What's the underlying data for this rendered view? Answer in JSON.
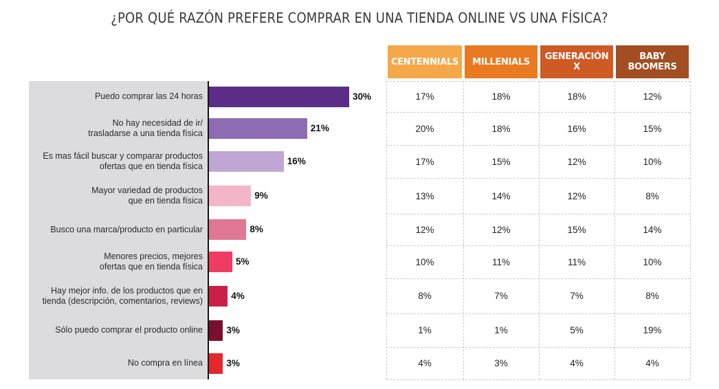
{
  "title": "¿POR QUÉ RAZÓN PREFERE COMPRAR EN UNA TIENDA ONLINE VS UNA FÍSICA?",
  "chart_data": {
    "type": "bar",
    "orientation": "horizontal",
    "categories": [
      "Puedo comprar las 24 horas",
      "No hay necesidad de ir/\ntrasladarse a una tienda física",
      "Es mas fácil buscar y comparar productos\nofertas que en tienda física",
      "Mayor variedad de productos\nque en tienda física",
      "Busco una marca/producto en particular",
      "Menores precios, mejores\nofertas que en tienda física",
      "Hay mejor info. de los productos que en\ntienda (descripción, comentarios, reviews)",
      "Sólo puedo comprar el producto online",
      "No compra en línea"
    ],
    "values": [
      30,
      21,
      16,
      9,
      8,
      5,
      4,
      3,
      3
    ],
    "value_labels": [
      "30%",
      "21%",
      "16%",
      "9%",
      "8%",
      "5%",
      "4%",
      "3%",
      "3%"
    ],
    "bar_colors": [
      "#5b2d87",
      "#8e6bb2",
      "#c0a6d2",
      "#f3b6c8",
      "#e07794",
      "#ee3c63",
      "#cb1f47",
      "#7a1030",
      "#e4262f"
    ],
    "table": {
      "columns": [
        {
          "label": "CENTENNIALS",
          "color": "#f4a84a"
        },
        {
          "label": "MILLENIALS",
          "color": "#ea7a22"
        },
        {
          "label": "GENERACIÓN X",
          "color": "#cf5a24"
        },
        {
          "label": "BABY\nBOOMERS",
          "color": "#a24d22"
        }
      ],
      "rows": [
        [
          "17%",
          "18%",
          "18%",
          "12%"
        ],
        [
          "20%",
          "18%",
          "16%",
          "15%"
        ],
        [
          "17%",
          "15%",
          "12%",
          "10%"
        ],
        [
          "13%",
          "14%",
          "12%",
          "8%"
        ],
        [
          "12%",
          "12%",
          "15%",
          "14%"
        ],
        [
          "10%",
          "11%",
          "11%",
          "10%"
        ],
        [
          "8%",
          "7%",
          "7%",
          "8%"
        ],
        [
          "1%",
          "1%",
          "5%",
          "19%"
        ],
        [
          "4%",
          "3%",
          "4%",
          "4%"
        ]
      ]
    }
  }
}
